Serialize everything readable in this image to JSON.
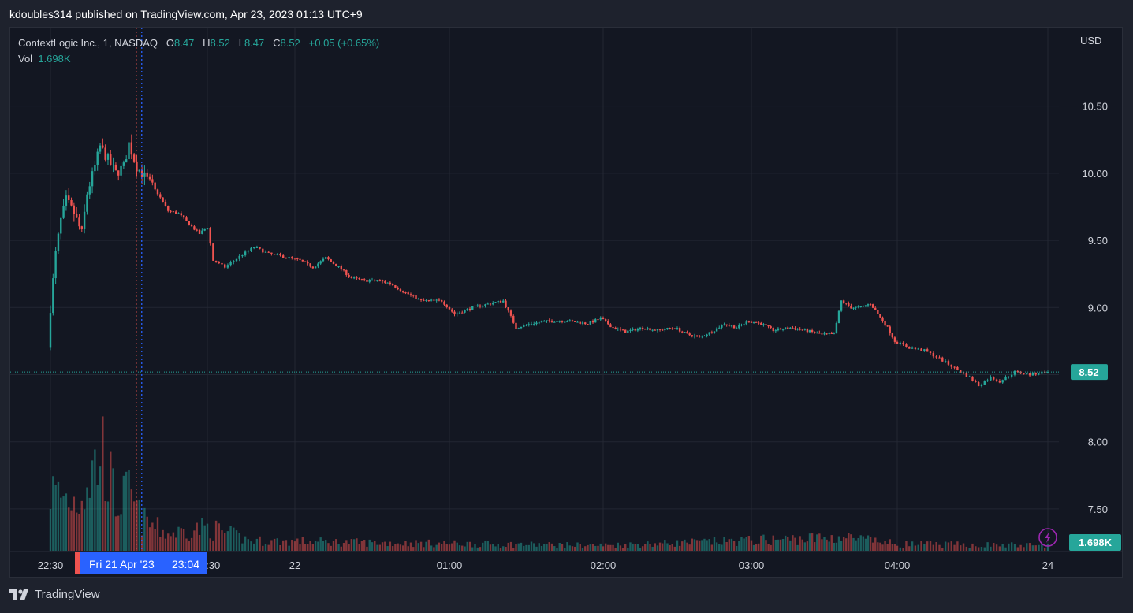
{
  "caption": {
    "author": "kdoubles314",
    "text": "kdoubles314 published on TradingView.com, Apr 23, 2023 01:13 UTC+9"
  },
  "legend": {
    "symbol": "ContextLogic Inc., 1, NASDAQ",
    "o_label": "O",
    "o_value": "8.47",
    "h_label": "H",
    "h_value": "8.52",
    "l_label": "L",
    "l_value": "8.47",
    "c_label": "C",
    "c_value": "8.52",
    "change": "+0.05 (+0.65%)",
    "vol_label": "Vol",
    "vol_value": "1.698K"
  },
  "currency": "USD",
  "last_price_label": "8.52",
  "last_volume_label": "1.698K",
  "crosshair_label": {
    "date": "Fri 21 Apr '23",
    "time": "23:04"
  },
  "branding": "TradingView",
  "colors": {
    "up": "#26a69a",
    "down": "#ef5350",
    "background": "#131722",
    "grid": "#232733",
    "text": "#d1d4dc",
    "crosshair_label": "#2962ff",
    "price_badge": "#26a69a",
    "alert_icon": "#9c27b0"
  },
  "chart_data": {
    "type": "candlestick",
    "title": "ContextLogic Inc., 1, NASDAQ",
    "currency": "USD",
    "ylim": [
      7.3,
      10.85
    ],
    "y_ticks": [
      7.5,
      8.0,
      8.5,
      9.0,
      9.5,
      10.0,
      10.5
    ],
    "y_tick_labels": [
      "7.50",
      "8.00",
      "8.50",
      "9.00",
      "9.50",
      "10.00",
      "10.50"
    ],
    "x_ticks": [
      {
        "label": "22:30",
        "time": "2023-04-21T22:30"
      },
      {
        "label": "23:30",
        "time": "2023-04-21T23:30"
      },
      {
        "label": "22",
        "time": "2023-04-22T00:00"
      },
      {
        "label": "01:00",
        "time": "2023-04-22T01:00"
      },
      {
        "label": "02:00",
        "time": "2023-04-22T02:00"
      },
      {
        "label": "03:00",
        "time": "2023-04-22T03:00"
      },
      {
        "label": "04:00",
        "time": "2023-04-22T04:00"
      },
      {
        "label": "24",
        "time": "2023-04-24T00:00"
      }
    ],
    "path": [
      [
        "2023-04-21T22:30",
        8.7
      ],
      [
        "2023-04-21T22:31",
        9.0
      ],
      [
        "2023-04-21T22:33",
        9.4
      ],
      [
        "2023-04-21T22:35",
        9.65
      ],
      [
        "2023-04-21T22:37",
        9.8
      ],
      [
        "2023-04-21T22:40",
        9.7
      ],
      [
        "2023-04-21T22:43",
        9.55
      ],
      [
        "2023-04-21T22:45",
        9.85
      ],
      [
        "2023-04-21T22:48",
        10.05
      ],
      [
        "2023-04-21T22:50",
        10.2
      ],
      [
        "2023-04-21T22:53",
        10.1
      ],
      [
        "2023-04-21T22:56",
        10.0
      ],
      [
        "2023-04-21T22:59",
        10.05
      ],
      [
        "2023-04-21T23:01",
        10.22
      ],
      [
        "2023-04-21T23:04",
        10.05
      ],
      [
        "2023-04-21T23:08",
        9.95
      ],
      [
        "2023-04-21T23:12",
        9.85
      ],
      [
        "2023-04-21T23:16",
        9.72
      ],
      [
        "2023-04-21T23:20",
        9.7
      ],
      [
        "2023-04-21T23:24",
        9.62
      ],
      [
        "2023-04-21T23:28",
        9.55
      ],
      [
        "2023-04-21T23:31",
        9.6
      ],
      [
        "2023-04-21T23:33",
        9.35
      ],
      [
        "2023-04-21T23:37",
        9.3
      ],
      [
        "2023-04-21T23:42",
        9.38
      ],
      [
        "2023-04-21T23:47",
        9.45
      ],
      [
        "2023-04-21T23:52",
        9.4
      ],
      [
        "2023-04-21T23:57",
        9.38
      ],
      [
        "2023-04-22T00:03",
        9.35
      ],
      [
        "2023-04-22T00:08",
        9.3
      ],
      [
        "2023-04-22T00:13",
        9.37
      ],
      [
        "2023-04-22T00:18",
        9.3
      ],
      [
        "2023-04-22T00:23",
        9.22
      ],
      [
        "2023-04-22T00:28",
        9.2
      ],
      [
        "2023-04-22T00:33",
        9.2
      ],
      [
        "2023-04-22T00:38",
        9.18
      ],
      [
        "2023-04-22T00:43",
        9.12
      ],
      [
        "2023-04-22T00:50",
        9.05
      ],
      [
        "2023-04-22T00:58",
        9.05
      ],
      [
        "2023-04-22T01:03",
        8.95
      ],
      [
        "2023-04-22T01:10",
        9.0
      ],
      [
        "2023-04-22T01:17",
        9.03
      ],
      [
        "2023-04-22T01:22",
        9.05
      ],
      [
        "2023-04-22T01:27",
        8.85
      ],
      [
        "2023-04-22T01:33",
        8.88
      ],
      [
        "2023-04-22T01:40",
        8.9
      ],
      [
        "2023-04-22T01:47",
        8.9
      ],
      [
        "2023-04-22T01:55",
        8.88
      ],
      [
        "2023-04-22T02:00",
        8.92
      ],
      [
        "2023-04-22T02:05",
        8.85
      ],
      [
        "2023-04-22T02:10",
        8.82
      ],
      [
        "2023-04-22T02:17",
        8.85
      ],
      [
        "2023-04-22T02:23",
        8.83
      ],
      [
        "2023-04-22T02:30",
        8.85
      ],
      [
        "2023-04-22T02:35",
        8.8
      ],
      [
        "2023-04-22T02:40",
        8.78
      ],
      [
        "2023-04-22T02:45",
        8.82
      ],
      [
        "2023-04-22T02:50",
        8.88
      ],
      [
        "2023-04-22T02:55",
        8.85
      ],
      [
        "2023-04-22T03:00",
        8.9
      ],
      [
        "2023-04-22T03:05",
        8.88
      ],
      [
        "2023-04-22T03:10",
        8.83
      ],
      [
        "2023-04-22T03:17",
        8.85
      ],
      [
        "2023-04-22T03:23",
        8.83
      ],
      [
        "2023-04-22T03:30",
        8.8
      ],
      [
        "2023-04-22T03:35",
        8.8
      ],
      [
        "2023-04-22T03:38",
        9.05
      ],
      [
        "2023-04-22T03:42",
        9.0
      ],
      [
        "2023-04-22T03:46",
        9.0
      ],
      [
        "2023-04-22T03:50",
        9.03
      ],
      [
        "2023-04-22T03:53",
        8.95
      ],
      [
        "2023-04-22T03:57",
        8.85
      ],
      [
        "2023-04-22T04:00",
        8.75
      ],
      [
        "2023-04-22T04:05",
        8.7
      ],
      [
        "2023-04-22T04:10",
        8.68
      ],
      [
        "2023-04-22T04:15",
        8.62
      ],
      [
        "2023-04-22T04:20",
        8.55
      ],
      [
        "2023-04-22T04:25",
        8.48
      ],
      [
        "2023-04-22T04:28",
        8.42
      ],
      [
        "2023-04-22T04:32",
        8.48
      ],
      [
        "2023-04-22T04:35",
        8.45
      ],
      [
        "2023-04-22T04:40",
        8.52
      ],
      [
        "2023-04-22T04:45",
        8.5
      ],
      [
        "2023-04-22T04:50",
        8.52
      ]
    ],
    "volume_profile": [
      [
        "2023-04-21T22:30",
        0.9
      ],
      [
        "2023-04-21T22:35",
        0.8
      ],
      [
        "2023-04-21T22:40",
        0.75
      ],
      [
        "2023-04-21T22:45",
        1.1
      ],
      [
        "2023-04-21T22:50",
        1.5
      ],
      [
        "2023-04-21T22:55",
        0.7
      ],
      [
        "2023-04-21T23:00",
        0.85
      ],
      [
        "2023-04-21T23:05",
        0.45
      ],
      [
        "2023-04-21T23:15",
        0.25
      ],
      [
        "2023-04-21T23:30",
        0.35
      ],
      [
        "2023-04-21T23:45",
        0.15
      ],
      [
        "2023-04-22T00:30",
        0.12
      ],
      [
        "2023-04-22T02:00",
        0.08
      ],
      [
        "2023-04-22T03:38",
        0.2
      ],
      [
        "2023-04-22T04:00",
        0.1
      ],
      [
        "2023-04-22T04:50",
        0.08
      ]
    ],
    "volume_unit": "K",
    "last_price": 8.52,
    "last_volume": "1.698K",
    "grid": true,
    "price_axis": "right",
    "crosshair": {
      "time": "2023-04-21T23:04"
    }
  }
}
